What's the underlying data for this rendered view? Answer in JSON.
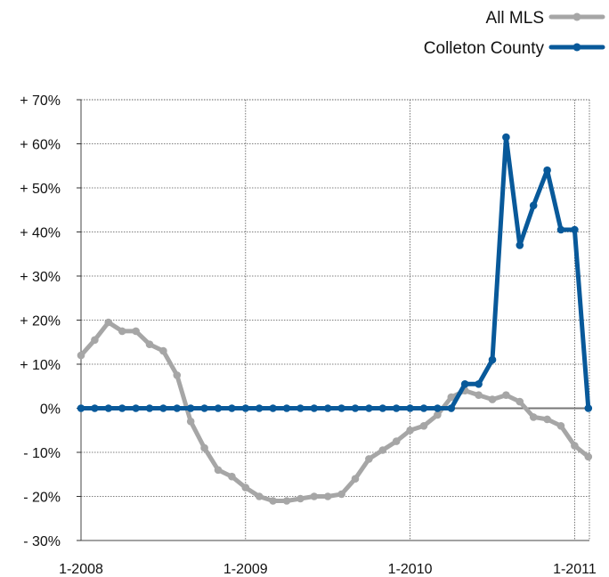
{
  "chart_data": {
    "type": "line",
    "title": "",
    "xlabel": "",
    "ylabel": "",
    "ylim": [
      -30,
      70
    ],
    "yticks": [
      70,
      60,
      50,
      40,
      30,
      20,
      10,
      0,
      -10,
      -20,
      -30
    ],
    "ytick_labels": [
      "+ 70%",
      "+ 60%",
      "+ 50%",
      "+ 40%",
      "+ 30%",
      "+ 20%",
      "+ 10%",
      "0%",
      "- 10%",
      "- 20%",
      "- 30%"
    ],
    "xticks": [
      {
        "label": "1-2008",
        "index": 0
      },
      {
        "label": "1-2009",
        "index": 12
      },
      {
        "label": "1-2010",
        "index": 24
      },
      {
        "label": "1-2011",
        "index": 36
      }
    ],
    "x_count": 38,
    "grid": true,
    "legend_position": "top-right",
    "series": [
      {
        "name": "All MLS",
        "color": "#a6a6a6",
        "values": [
          12,
          15.5,
          19.5,
          17.5,
          17.5,
          14.5,
          13,
          7.5,
          -3,
          -9,
          -14,
          -15.5,
          -18,
          -20,
          -21,
          -21,
          -20.5,
          -20,
          -20,
          -19.5,
          -16,
          -11.5,
          -9.5,
          -7.5,
          -5,
          -4,
          -1.5,
          2.5,
          4,
          3,
          2,
          3,
          1.5,
          -2,
          -2.5,
          -4,
          -8.5,
          -11
        ]
      },
      {
        "name": "Colleton County",
        "color": "#08599a",
        "values": [
          0,
          0,
          0,
          0,
          0,
          0,
          0,
          0,
          0,
          0,
          0,
          0,
          0,
          0,
          0,
          0,
          0,
          0,
          0,
          0,
          0,
          0,
          0,
          0,
          0,
          0,
          0,
          0,
          5.5,
          5.5,
          11,
          61.5,
          37,
          46,
          54,
          40.5,
          40.5,
          0
        ]
      }
    ]
  }
}
